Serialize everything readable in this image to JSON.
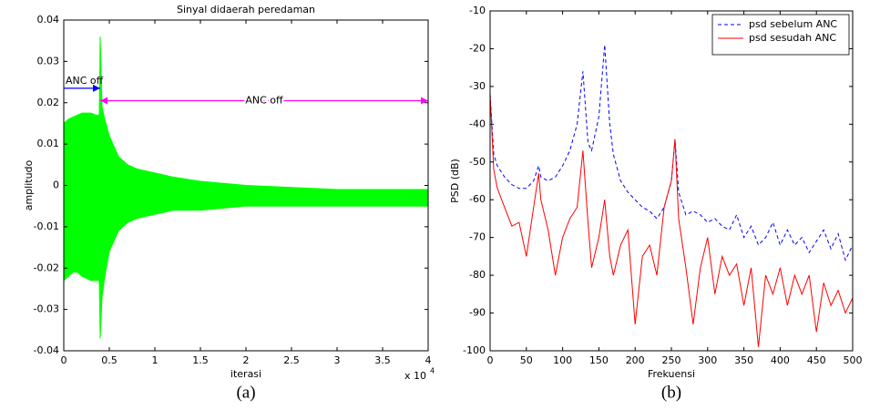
{
  "chart_data": [
    {
      "type": "band",
      "title": "Sinyal didaerah peredaman",
      "x_label": "iterasi",
      "y_label": "amplitudo",
      "caption": "(a)",
      "x_scale_label": "x 10",
      "x_scale_exp": "4",
      "color": "#00ff00",
      "x": [
        0,
        500,
        1000,
        1500,
        2000,
        2500,
        3000,
        3500,
        3900,
        4000,
        4200,
        4500,
        5000,
        6000,
        7000,
        8000,
        10000,
        12000,
        15000,
        20000,
        25000,
        30000,
        35000,
        40000
      ],
      "upper": [
        0.015,
        0.016,
        0.0165,
        0.017,
        0.0175,
        0.0175,
        0.0175,
        0.017,
        0.017,
        0.036,
        0.019,
        0.016,
        0.012,
        0.007,
        0.005,
        0.004,
        0.003,
        0.002,
        0.001,
        0.0,
        -0.0005,
        -0.001,
        -0.001,
        -0.001
      ],
      "lower": [
        -0.023,
        -0.022,
        -0.021,
        -0.021,
        -0.022,
        -0.0225,
        -0.023,
        -0.023,
        -0.023,
        -0.037,
        -0.027,
        -0.022,
        -0.016,
        -0.011,
        -0.009,
        -0.008,
        -0.007,
        -0.006,
        -0.006,
        -0.005,
        -0.005,
        -0.005,
        -0.005,
        -0.005
      ],
      "xlim": [
        0,
        40000
      ],
      "xticks": [
        0,
        {
          "value": 5000,
          "label": "0.5"
        },
        {
          "value": 10000,
          "label": "1"
        },
        {
          "value": 15000,
          "label": "1.5"
        },
        {
          "value": 20000,
          "label": "2"
        },
        {
          "value": 25000,
          "label": "2.5"
        },
        {
          "value": 30000,
          "label": "3"
        },
        {
          "value": 35000,
          "label": "3.5"
        },
        {
          "value": 40000,
          "label": "4"
        }
      ],
      "ylim": [
        -0.04,
        0.04
      ],
      "yticks": [
        -0.04,
        -0.03,
        -0.02,
        -0.01,
        0,
        0.01,
        0.02,
        0.03,
        0.04
      ],
      "annotations": [
        {
          "text": "ANC off",
          "x": [
            0,
            4000
          ],
          "y": 0.0235,
          "color": "#0000ff",
          "arrow": "end"
        },
        {
          "text": "ANC off",
          "x": [
            4000,
            40000
          ],
          "y": 0.0205,
          "color": "#ff00ff",
          "arrow": "both"
        }
      ]
    },
    {
      "type": "line",
      "x_label": "Frekuensi",
      "y_label": "PSD (dB)",
      "caption": "(b)",
      "legend": "upper right",
      "x": [
        0,
        5,
        10,
        20,
        30,
        40,
        50,
        60,
        67,
        70,
        80,
        90,
        100,
        110,
        120,
        128,
        135,
        140,
        150,
        158,
        165,
        170,
        180,
        190,
        200,
        210,
        220,
        230,
        240,
        250,
        255,
        260,
        270,
        280,
        290,
        300,
        310,
        320,
        330,
        340,
        350,
        360,
        370,
        380,
        390,
        400,
        410,
        420,
        430,
        440,
        450,
        460,
        470,
        480,
        490,
        500
      ],
      "series": [
        {
          "name": "psd sebelum ANC",
          "color": "#0000ff",
          "line_style": "dashed",
          "values": [
            -32,
            -48,
            -51,
            -54,
            -56,
            -57,
            -57,
            -55,
            -51,
            -54,
            -55,
            -54,
            -51,
            -47,
            -40,
            -26,
            -45,
            -47,
            -38,
            -19,
            -40,
            -48,
            -55,
            -58,
            -60,
            -62,
            -63,
            -65,
            -62,
            -55,
            -44,
            -58,
            -64,
            -63,
            -64,
            -66,
            -65,
            -67,
            -68,
            -64,
            -70,
            -67,
            -72,
            -70,
            -66,
            -72,
            -68,
            -72,
            -70,
            -74,
            -71,
            -68,
            -73,
            -69,
            -76,
            -72
          ]
        },
        {
          "name": "psd sesudah ANC",
          "color": "#ff0000",
          "line_style": "solid",
          "values": [
            -32,
            -52,
            -57,
            -62,
            -67,
            -66,
            -75,
            -62,
            -53,
            -60,
            -68,
            -80,
            -70,
            -65,
            -62,
            -47,
            -66,
            -78,
            -70,
            -60,
            -75,
            -80,
            -72,
            -68,
            -93,
            -75,
            -72,
            -80,
            -62,
            -55,
            -44,
            -65,
            -78,
            -93,
            -78,
            -70,
            -85,
            -75,
            -80,
            -77,
            -88,
            -78,
            -99,
            -80,
            -85,
            -78,
            -88,
            -80,
            -85,
            -80,
            -95,
            -82,
            -88,
            -84,
            -90,
            -86
          ]
        }
      ],
      "xlim": [
        0,
        500
      ],
      "xticks": [
        0,
        50,
        100,
        150,
        200,
        250,
        300,
        350,
        400,
        450,
        500
      ],
      "ylim": [
        -100,
        -10
      ],
      "yticks": [
        -100,
        -90,
        -80,
        -70,
        -60,
        -50,
        -40,
        -30,
        -20,
        -10
      ]
    }
  ]
}
